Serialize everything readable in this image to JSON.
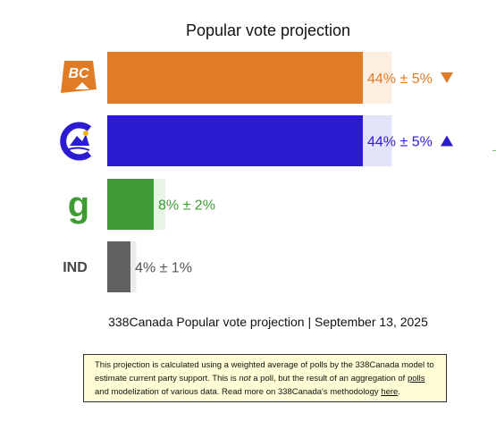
{
  "chart_data": {
    "type": "bar",
    "orientation": "horizontal",
    "title": "Popular vote projection",
    "subtitle": "338Canada Popular vote projection | September 13, 2025",
    "categories": [
      "BC",
      "C",
      "g",
      "IND"
    ],
    "series": [
      {
        "values": [
          44,
          44,
          8,
          4
        ],
        "margins": [
          5,
          5,
          2,
          1
        ],
        "labels": [
          "44% ± 5%",
          "44% ± 5%",
          "8% ± 2%",
          "4% ± 1%"
        ],
        "trends": [
          "down",
          "up",
          "",
          ""
        ]
      }
    ],
    "xlim": [
      0,
      100
    ],
    "grid": false,
    "legend": "none"
  },
  "parties": [
    {
      "logo": "BC",
      "color": "#e07c26",
      "band_color": "#fcefe2",
      "label_color": "#e07c26",
      "trend_icon": "down-triangle-icon"
    },
    {
      "logo": "C",
      "color": "#2b1cd1",
      "band_color": "#e3e3fa",
      "label_color": "#2b1cd1",
      "trend_icon": "up-triangle-icon"
    },
    {
      "logo": "g",
      "color": "#3f9c35",
      "band_color": "#e8f4e6",
      "label_color": "#3f9c35",
      "trend_icon": ""
    },
    {
      "logo": "IND",
      "color": "#616161",
      "band_color": "#ececec",
      "label_color": "#555555",
      "trend_icon": ""
    }
  ],
  "note": {
    "part1": "This projection is calculated using a weighted average of polls by the 338Canada model to estimate current party support. This is ",
    "not_word": "not",
    "part2": " a poll, but the result of an aggregation of ",
    "polls_link": "polls",
    "part3": " and modelization of various data. Read more on 338Canada's methodology ",
    "here_link": "here",
    "part4": "."
  }
}
